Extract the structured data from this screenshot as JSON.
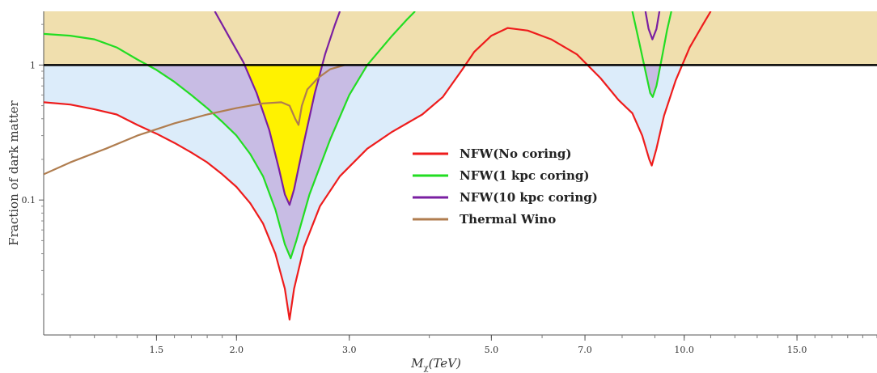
{
  "chart_data": {
    "type": "line",
    "xlabel_main": "M",
    "xlabel_sub": "χ",
    "xlabel_rest": "(TeV)",
    "ylabel": "Fraction of dark matter",
    "xscale": "log",
    "yscale": "log",
    "xlim": [
      1.0,
      20.0
    ],
    "ylim": [
      0.01,
      2.5
    ],
    "x_ticks": [
      {
        "value": 1.5,
        "label": "1.5"
      },
      {
        "value": 2.0,
        "label": "2.0"
      },
      {
        "value": 3.0,
        "label": "3.0"
      },
      {
        "value": 5.0,
        "label": "5.0"
      },
      {
        "value": 7.0,
        "label": "7.0"
      },
      {
        "value": 10.0,
        "label": "10.0"
      },
      {
        "value": 15.0,
        "label": "15.0"
      }
    ],
    "y_ticks": [
      {
        "value": 1,
        "label": "1"
      },
      {
        "value": 0.1,
        "label": "0.1"
      }
    ],
    "reference_line": {
      "y": 1,
      "color": "#000000"
    },
    "shading": [
      {
        "region": "above_reference",
        "color": "#f0dfae"
      },
      {
        "region": "below_no_coring",
        "color": "#dcecfa"
      },
      {
        "region": "below_1kpc",
        "color": "#c8bce4"
      },
      {
        "region": "below_10kpc",
        "color": "#fff200"
      }
    ],
    "legend_position": "center-right",
    "series": [
      {
        "name": "NFW(No coring)",
        "color": "#ee1c1c",
        "points": [
          [
            1.0,
            0.53
          ],
          [
            1.1,
            0.51
          ],
          [
            1.2,
            0.47
          ],
          [
            1.3,
            0.43
          ],
          [
            1.4,
            0.36
          ],
          [
            1.5,
            0.31
          ],
          [
            1.6,
            0.265
          ],
          [
            1.7,
            0.225
          ],
          [
            1.8,
            0.19
          ],
          [
            1.9,
            0.155
          ],
          [
            2.0,
            0.125
          ],
          [
            2.1,
            0.095
          ],
          [
            2.2,
            0.067
          ],
          [
            2.3,
            0.04
          ],
          [
            2.38,
            0.022
          ],
          [
            2.42,
            0.013
          ],
          [
            2.46,
            0.022
          ],
          [
            2.55,
            0.045
          ],
          [
            2.7,
            0.09
          ],
          [
            2.9,
            0.15
          ],
          [
            3.2,
            0.24
          ],
          [
            3.5,
            0.32
          ],
          [
            3.9,
            0.43
          ],
          [
            4.2,
            0.58
          ],
          [
            4.5,
            0.92
          ],
          [
            4.7,
            1.25
          ],
          [
            5.0,
            1.65
          ],
          [
            5.3,
            1.88
          ],
          [
            5.7,
            1.8
          ],
          [
            6.2,
            1.55
          ],
          [
            6.8,
            1.2
          ],
          [
            7.4,
            0.8
          ],
          [
            7.9,
            0.55
          ],
          [
            8.3,
            0.44
          ],
          [
            8.6,
            0.3
          ],
          [
            8.82,
            0.2
          ],
          [
            8.9,
            0.18
          ],
          [
            9.05,
            0.24
          ],
          [
            9.3,
            0.42
          ],
          [
            9.7,
            0.77
          ],
          [
            10.2,
            1.35
          ],
          [
            10.7,
            2.0
          ],
          [
            11.0,
            2.5
          ]
        ]
      },
      {
        "name": "NFW(1 kpc coring)",
        "color": "#22dd22",
        "points": [
          [
            1.0,
            1.7
          ],
          [
            1.1,
            1.65
          ],
          [
            1.2,
            1.55
          ],
          [
            1.3,
            1.35
          ],
          [
            1.4,
            1.1
          ],
          [
            1.5,
            0.92
          ],
          [
            1.6,
            0.75
          ],
          [
            1.7,
            0.6
          ],
          [
            1.8,
            0.48
          ],
          [
            1.9,
            0.38
          ],
          [
            2.0,
            0.3
          ],
          [
            2.1,
            0.22
          ],
          [
            2.2,
            0.15
          ],
          [
            2.3,
            0.085
          ],
          [
            2.38,
            0.047
          ],
          [
            2.43,
            0.037
          ],
          [
            2.48,
            0.05
          ],
          [
            2.6,
            0.11
          ],
          [
            2.8,
            0.28
          ],
          [
            3.0,
            0.6
          ],
          [
            3.2,
            1.0
          ],
          [
            3.5,
            1.65
          ],
          [
            3.7,
            2.2
          ],
          [
            3.8,
            2.5
          ]
        ]
      },
      {
        "name": "NFW(1 kpc coring)",
        "color": "#22dd22",
        "points": [
          [
            8.3,
            2.5
          ],
          [
            8.5,
            1.5
          ],
          [
            8.7,
            0.9
          ],
          [
            8.85,
            0.62
          ],
          [
            8.93,
            0.58
          ],
          [
            9.05,
            0.7
          ],
          [
            9.25,
            1.2
          ],
          [
            9.4,
            1.8
          ],
          [
            9.55,
            2.5
          ]
        ]
      },
      {
        "name": "NFW(10 kpc coring)",
        "color": "#7a1fa2",
        "points": [
          [
            1.85,
            2.5
          ],
          [
            1.95,
            1.6
          ],
          [
            2.05,
            1.05
          ],
          [
            2.15,
            0.62
          ],
          [
            2.25,
            0.33
          ],
          [
            2.33,
            0.17
          ],
          [
            2.38,
            0.11
          ],
          [
            2.42,
            0.092
          ],
          [
            2.46,
            0.12
          ],
          [
            2.55,
            0.27
          ],
          [
            2.65,
            0.62
          ],
          [
            2.75,
            1.2
          ],
          [
            2.85,
            2.0
          ],
          [
            2.9,
            2.5
          ]
        ]
      },
      {
        "name": "NFW(10 kpc coring)",
        "color": "#7a1fa2",
        "points": [
          [
            8.7,
            2.5
          ],
          [
            8.8,
            1.85
          ],
          [
            8.92,
            1.55
          ],
          [
            9.05,
            1.85
          ],
          [
            9.15,
            2.5
          ]
        ]
      },
      {
        "name": "Thermal Wino",
        "color": "#b07d4f",
        "points": [
          [
            1.0,
            0.155
          ],
          [
            1.1,
            0.19
          ],
          [
            1.25,
            0.24
          ],
          [
            1.4,
            0.3
          ],
          [
            1.6,
            0.37
          ],
          [
            1.8,
            0.43
          ],
          [
            2.0,
            0.48
          ],
          [
            2.2,
            0.52
          ],
          [
            2.35,
            0.53
          ],
          [
            2.42,
            0.5
          ],
          [
            2.47,
            0.4
          ],
          [
            2.5,
            0.36
          ],
          [
            2.53,
            0.5
          ],
          [
            2.58,
            0.66
          ],
          [
            2.68,
            0.8
          ],
          [
            2.8,
            0.93
          ],
          [
            2.95,
            1.0
          ]
        ]
      }
    ],
    "legend": [
      {
        "label": "NFW(No coring)",
        "color": "#ee1c1c"
      },
      {
        "label": "NFW(1 kpc coring)",
        "color": "#22dd22"
      },
      {
        "label": "NFW(10 kpc coring)",
        "color": "#7a1fa2"
      },
      {
        "label": "Thermal Wino",
        "color": "#b07d4f"
      }
    ]
  }
}
